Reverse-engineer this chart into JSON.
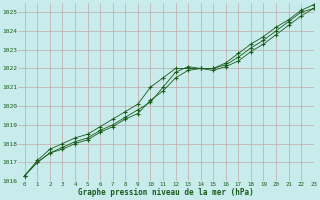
{
  "title": "Graphe pression niveau de la mer (hPa)",
  "bg_color": "#c8ecec",
  "grid_color": "#c0a8a8",
  "line_color": "#1a5c1a",
  "xlim": [
    -0.5,
    23
  ],
  "ylim": [
    1016,
    1025.5
  ],
  "yticks": [
    1016,
    1017,
    1018,
    1019,
    1020,
    1021,
    1022,
    1023,
    1024,
    1025
  ],
  "xticks": [
    0,
    1,
    2,
    3,
    4,
    5,
    6,
    7,
    8,
    9,
    10,
    11,
    12,
    13,
    14,
    15,
    16,
    17,
    18,
    19,
    20,
    21,
    22,
    23
  ],
  "series1": [
    1016.3,
    1017.0,
    1017.5,
    1017.8,
    1018.1,
    1018.3,
    1018.7,
    1019.0,
    1019.4,
    1019.8,
    1020.2,
    1021.0,
    1021.8,
    1022.1,
    1022.0,
    1021.9,
    1022.1,
    1022.4,
    1022.9,
    1023.3,
    1023.8,
    1024.3,
    1024.8,
    1025.2
  ],
  "series2": [
    1016.3,
    1017.0,
    1017.5,
    1017.7,
    1018.0,
    1018.2,
    1018.6,
    1018.9,
    1019.3,
    1019.6,
    1020.3,
    1020.8,
    1021.5,
    1021.9,
    1022.0,
    1022.0,
    1022.2,
    1022.6,
    1023.1,
    1023.5,
    1024.0,
    1024.5,
    1025.0,
    1025.2
  ],
  "series3": [
    1016.3,
    1017.1,
    1017.7,
    1018.0,
    1018.3,
    1018.5,
    1018.9,
    1019.3,
    1019.7,
    1020.1,
    1021.0,
    1021.5,
    1022.0,
    1022.0,
    1022.0,
    1022.0,
    1022.3,
    1022.8,
    1023.3,
    1023.7,
    1024.2,
    1024.6,
    1025.1,
    1025.4
  ]
}
